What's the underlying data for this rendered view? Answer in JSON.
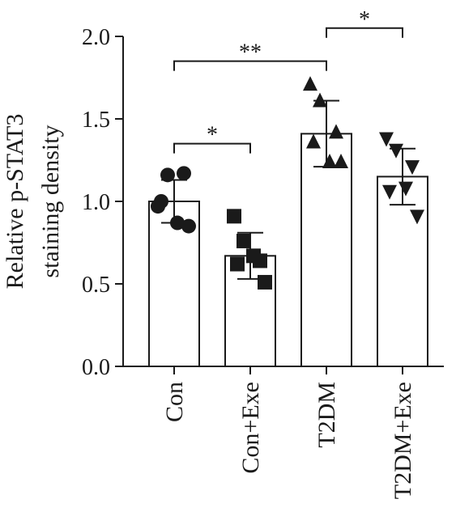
{
  "chart_data": {
    "type": "bar",
    "ylabel_lines": [
      "Relative p-STAT3",
      "staining density"
    ],
    "categories": [
      "Con",
      "Con+Exe",
      "T2DM",
      "T2DM+Exe"
    ],
    "values": [
      1.0,
      0.67,
      1.41,
      1.15
    ],
    "errors": [
      0.13,
      0.14,
      0.2,
      0.17
    ],
    "ylim": [
      0.0,
      2.0
    ],
    "yticks": [
      0.0,
      0.5,
      1.0,
      1.5,
      2.0
    ],
    "ytick_labels": [
      "0.0",
      "0.5",
      "1.0",
      "1.5",
      "2.0"
    ],
    "points": [
      [
        0.97,
        1.16,
        1.17,
        1.0,
        0.87,
        0.85
      ],
      [
        0.91,
        0.76,
        0.64,
        0.62,
        0.67,
        0.51
      ],
      [
        1.71,
        1.61,
        1.42,
        1.36,
        1.24,
        1.24
      ],
      [
        1.38,
        1.31,
        1.21,
        1.06,
        1.08,
        0.91
      ]
    ],
    "markers": [
      "circle",
      "square",
      "triangle-up",
      "triangle-down"
    ],
    "significance": [
      {
        "from": 0,
        "to": 1,
        "label": "*",
        "y": 1.35
      },
      {
        "from": 0,
        "to": 2,
        "label": "**",
        "y": 1.85
      },
      {
        "from": 2,
        "to": 3,
        "label": "*",
        "y": 2.05
      }
    ],
    "grid": false,
    "colors": {
      "bar_fill": "#ffffff",
      "stroke": "#1a1a1a",
      "marker": "#1a1a1a"
    }
  }
}
